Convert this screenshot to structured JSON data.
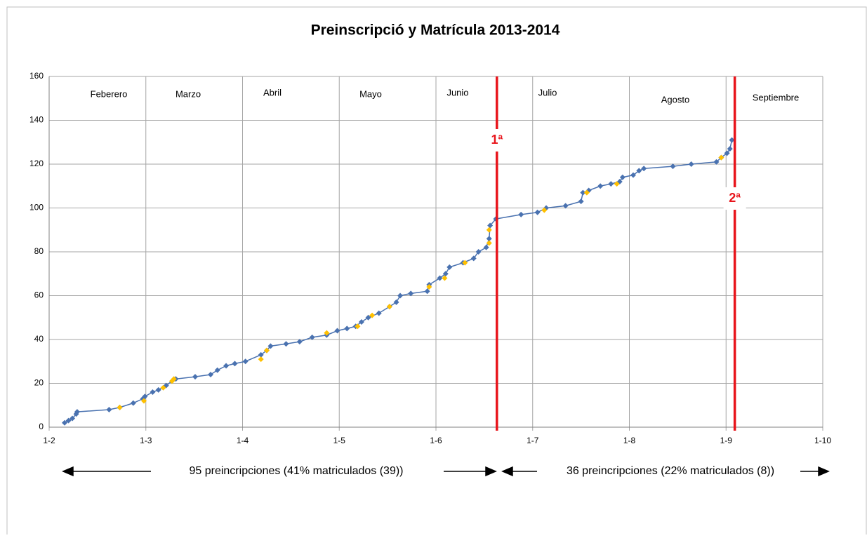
{
  "chart_data": {
    "type": "line",
    "title": "Preinscripció y Matrícula 2013-2014",
    "xlim": [
      2,
      10
    ],
    "xticks": [
      {
        "value": 2,
        "label": "1-2"
      },
      {
        "value": 3,
        "label": "1-3"
      },
      {
        "value": 4,
        "label": "1-4"
      },
      {
        "value": 5,
        "label": "1-5"
      },
      {
        "value": 6,
        "label": "1-6"
      },
      {
        "value": 7,
        "label": "1-7"
      },
      {
        "value": 8,
        "label": "1-8"
      },
      {
        "value": 9,
        "label": "1-9"
      },
      {
        "value": 10,
        "label": "1-10"
      }
    ],
    "ylim": [
      0,
      160
    ],
    "yticks": [
      0,
      20,
      40,
      60,
      80,
      100,
      120,
      140,
      160
    ],
    "grid": true,
    "month_labels": [
      "Feberero",
      "Marzo",
      "Abril",
      "Mayo",
      "Junio",
      "Julio",
      "Agosto",
      "Septiembre"
    ],
    "series": [
      {
        "color": "#4a72b0",
        "x": [
          2.16,
          2.2,
          2.24,
          2.28,
          2.29,
          2.62,
          2.73,
          2.87,
          2.97,
          2.99,
          3.07,
          3.13,
          3.21,
          3.27,
          3.31,
          3.51,
          3.67,
          3.74,
          3.83,
          3.92,
          4.03,
          4.19,
          4.25,
          4.29,
          4.45,
          4.59,
          4.72,
          4.87,
          4.98,
          5.08,
          5.17,
          5.23,
          5.3,
          5.41,
          5.52,
          5.59,
          5.63,
          5.74,
          5.91,
          5.93,
          6.04,
          6.1,
          6.14,
          6.28,
          6.39,
          6.44,
          6.52,
          6.55,
          6.56,
          6.62,
          6.88,
          7.05,
          7.14,
          7.34,
          7.5,
          7.52,
          7.58,
          7.7,
          7.81,
          7.9,
          7.93,
          8.04,
          8.1,
          8.15,
          8.45,
          8.64,
          8.9,
          8.95,
          9.01,
          9.04,
          9.06
        ],
        "values": [
          2,
          3,
          4,
          6,
          7,
          8,
          9,
          11,
          13,
          14,
          16,
          17,
          19,
          21,
          22,
          23,
          24,
          26,
          28,
          29,
          30,
          33,
          35,
          37,
          38,
          39,
          41,
          42,
          44,
          45,
          46,
          48,
          50,
          52,
          55,
          57,
          60,
          61,
          62,
          65,
          68,
          70,
          73,
          75,
          77,
          80,
          82,
          86,
          92,
          95,
          97,
          98,
          100,
          101,
          103,
          107,
          108,
          110,
          111,
          112,
          114,
          115,
          117,
          118,
          119,
          120,
          121,
          123,
          125,
          127,
          131
        ]
      },
      {
        "color": "#ffc000",
        "x": [
          2.73,
          2.98,
          3.18,
          3.27,
          3.29,
          4.19,
          4.25,
          4.87,
          5.19,
          5.34,
          5.52,
          5.93,
          6.09,
          6.3,
          6.55,
          6.55,
          7.12,
          7.56,
          7.87,
          8.95
        ],
        "values": [
          9,
          12,
          18,
          21,
          22,
          31,
          35,
          43,
          46,
          51,
          55,
          64,
          68,
          75,
          84,
          90,
          99,
          107,
          111,
          123
        ]
      }
    ],
    "markers": [
      {
        "label": "1ª",
        "x": 6.63,
        "color": "#e8141b"
      },
      {
        "label": "2ª",
        "x": 9.09,
        "color": "#e8141b"
      }
    ],
    "annotations": [
      "95 preincripciones  (41% matriculados (39))",
      "36 preincripciones  (22% matriculados (8))"
    ]
  }
}
